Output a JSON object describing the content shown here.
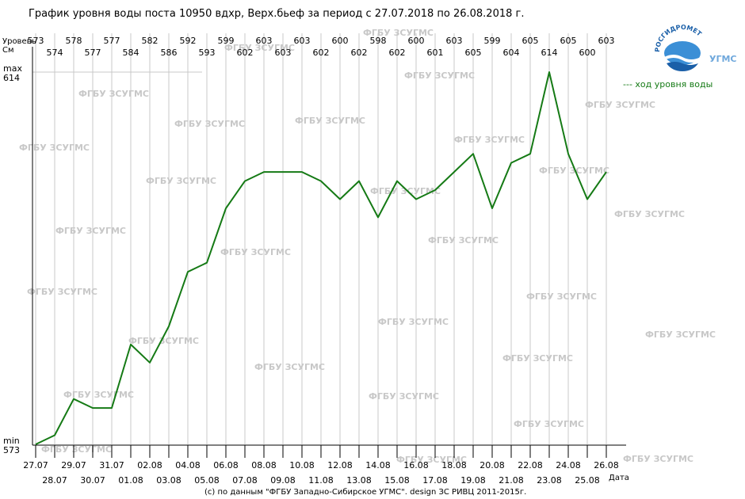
{
  "title": "График уровня воды поста 10950 вдхр, Верх.бьеф за период с 27.07.2018 по 26.08.2018 г.",
  "axis": {
    "y_label_line1": "Уровень",
    "y_label_line2": "См",
    "x_label": "Дата",
    "max_label": "max",
    "min_label": "min",
    "max_value_label": "614",
    "min_value_label": "573"
  },
  "legend": {
    "label": "--- ход уровня воды",
    "color": "#157a15"
  },
  "logo": {
    "arc_text": "РОСГИДРОМЕТ",
    "side_text": "УГМС"
  },
  "watermark": "ФГБУ ЗСУГМС",
  "footer": "(c) по данным \"ФГБУ Западно-Сибирское УГМС\". design ЗС РИВЦ 2011-2015г.",
  "chart_data": {
    "type": "line",
    "title": "График уровня воды поста 10950 вдхр, Верх.бьеф за период с 27.07.2018 по 26.08.2018 г.",
    "xlabel": "Дата",
    "ylabel": "Уровень См",
    "ylim": [
      573,
      614
    ],
    "grid": true,
    "legend_position": "top-right",
    "x": [
      "27.07",
      "28.07",
      "29.07",
      "30.07",
      "31.07",
      "01.08",
      "02.08",
      "03.08",
      "04.08",
      "05.08",
      "06.08",
      "07.08",
      "08.08",
      "09.08",
      "10.08",
      "11.08",
      "12.08",
      "13.08",
      "14.08",
      "15.08",
      "16.08",
      "17.08",
      "18.08",
      "19.08",
      "20.08",
      "21.08",
      "22.08",
      "23.08",
      "24.08",
      "25.08",
      "26.08"
    ],
    "series": [
      {
        "name": "ход уровня воды",
        "color": "#157a15",
        "values": [
          573,
          574,
          578,
          577,
          577,
          584,
          582,
          586,
          592,
          593,
          599,
          602,
          603,
          603,
          603,
          602,
          600,
          602,
          598,
          602,
          600,
          601,
          603,
          605,
          599,
          604,
          605,
          614,
          605,
          600,
          603
        ]
      }
    ]
  }
}
